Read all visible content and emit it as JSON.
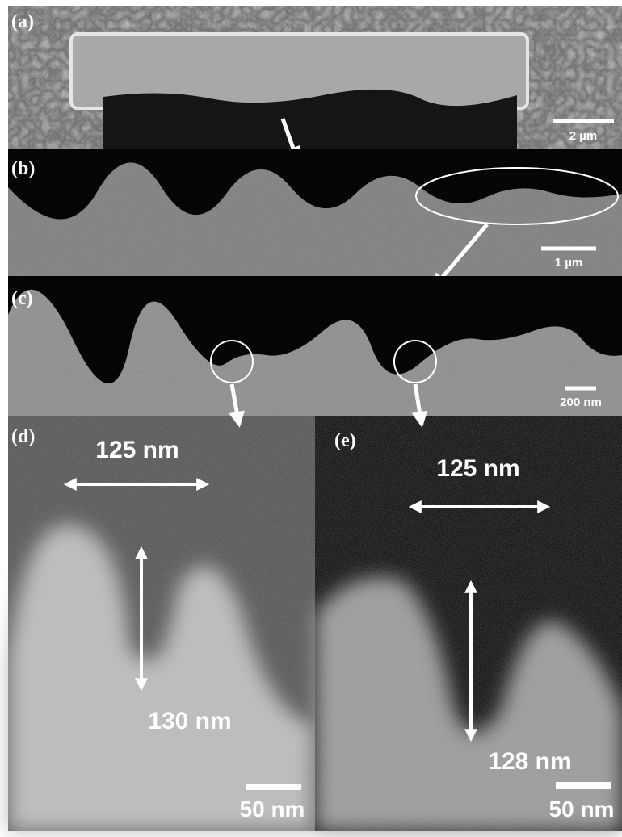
{
  "panels": [
    {
      "label": "(a)",
      "scale_bar": "2 µm"
    },
    {
      "label": "(b)",
      "scale_bar": "1 µm"
    },
    {
      "label": "(c)",
      "scale_bar": "200 nm"
    },
    {
      "label": "(d)",
      "scale_bar": "50 nm",
      "measurements": [
        "125 nm",
        "130 nm"
      ]
    },
    {
      "label": "(e)",
      "scale_bar": "50 nm",
      "measurements": [
        "125 nm",
        "128 nm"
      ]
    }
  ]
}
